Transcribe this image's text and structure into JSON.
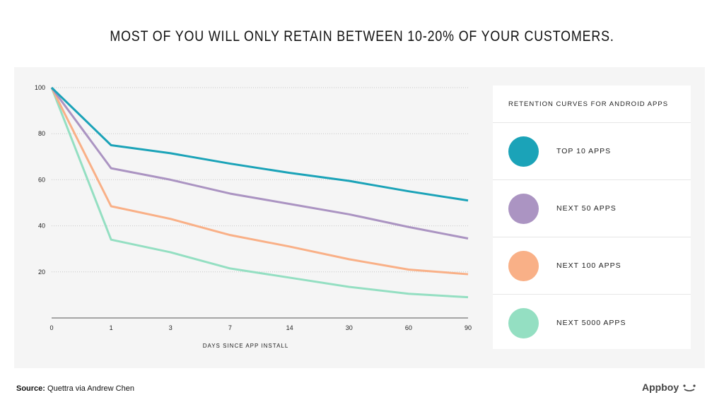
{
  "title": "MOST OF YOU WILL ONLY RETAIN BETWEEN 10-20% OF YOUR CUSTOMERS.",
  "source_label": "Source:",
  "source_text": "Quettra via Andrew Chen",
  "logo": "Appboy",
  "chart_data": {
    "type": "line",
    "title": "MOST OF YOU WILL ONLY RETAIN BETWEEN 10-20% OF YOUR CUSTOMERS.",
    "xlabel": "DAYS SINCE APP INSTALL",
    "ylabel": "",
    "categories": [
      "0",
      "1",
      "3",
      "7",
      "14",
      "30",
      "60",
      "90"
    ],
    "yticks": [
      20,
      40,
      60,
      80,
      100
    ],
    "ylim": [
      0,
      100
    ],
    "grid": "horizontal dotted",
    "legend_title": "RETENTION CURVES FOR ANDROID APPS",
    "legend_placement": "right",
    "series": [
      {
        "name": "TOP 10 APPS",
        "color": "#1ba3b8",
        "values": [
          100,
          75,
          71.5,
          67,
          63,
          59.5,
          55,
          51
        ]
      },
      {
        "name": "NEXT 50 APPS",
        "color": "#ab94c2",
        "values": [
          100,
          65,
          60,
          54,
          49.5,
          45,
          39.5,
          34.5
        ]
      },
      {
        "name": "NEXT 100 APPS",
        "color": "#f9b087",
        "values": [
          100,
          48.5,
          43,
          36,
          31,
          25.5,
          21,
          19
        ]
      },
      {
        "name": "NEXT 5000 APPS",
        "color": "#94dfc2",
        "values": [
          100,
          34,
          28.5,
          21.5,
          17.5,
          13.5,
          10.5,
          9
        ]
      }
    ]
  }
}
